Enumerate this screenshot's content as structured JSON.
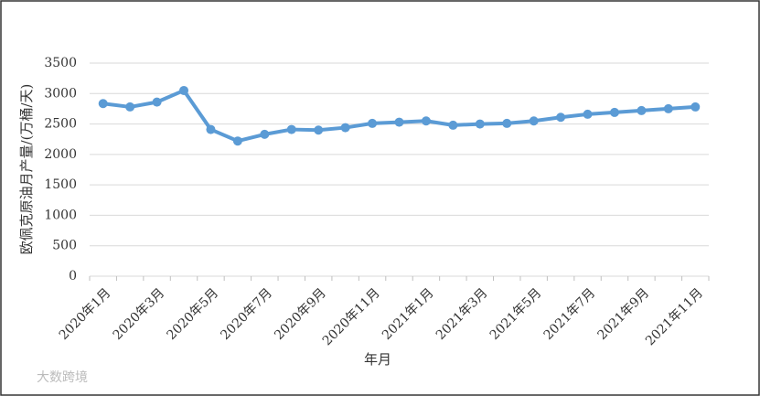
{
  "chart_data": {
    "type": "line",
    "ylabel": "欧佩克原油月产量/(万桶/天)",
    "xlabel": "年月",
    "watermark": "大数跨境",
    "categories": [
      "2020年1月",
      null,
      "2020年3月",
      null,
      "2020年5月",
      null,
      "2020年7月",
      null,
      "2020年9月",
      null,
      "2020年11月",
      null,
      "2021年1月",
      null,
      "2021年3月",
      null,
      "2021年5月",
      null,
      "2021年7月",
      null,
      "2021年9月",
      null,
      "2021年11月"
    ],
    "values": [
      2835,
      2780,
      2860,
      3050,
      2410,
      2220,
      2330,
      2410,
      2400,
      2440,
      2510,
      2530,
      2550,
      2480,
      2500,
      2510,
      2550,
      2610,
      2660,
      2690,
      2720,
      2750,
      2780
    ],
    "color": "#5b9bd5",
    "ylim": [
      0,
      3500
    ],
    "yticks": [
      0,
      500,
      1000,
      1500,
      2000,
      2500,
      3000,
      3500
    ],
    "grid": true
  }
}
